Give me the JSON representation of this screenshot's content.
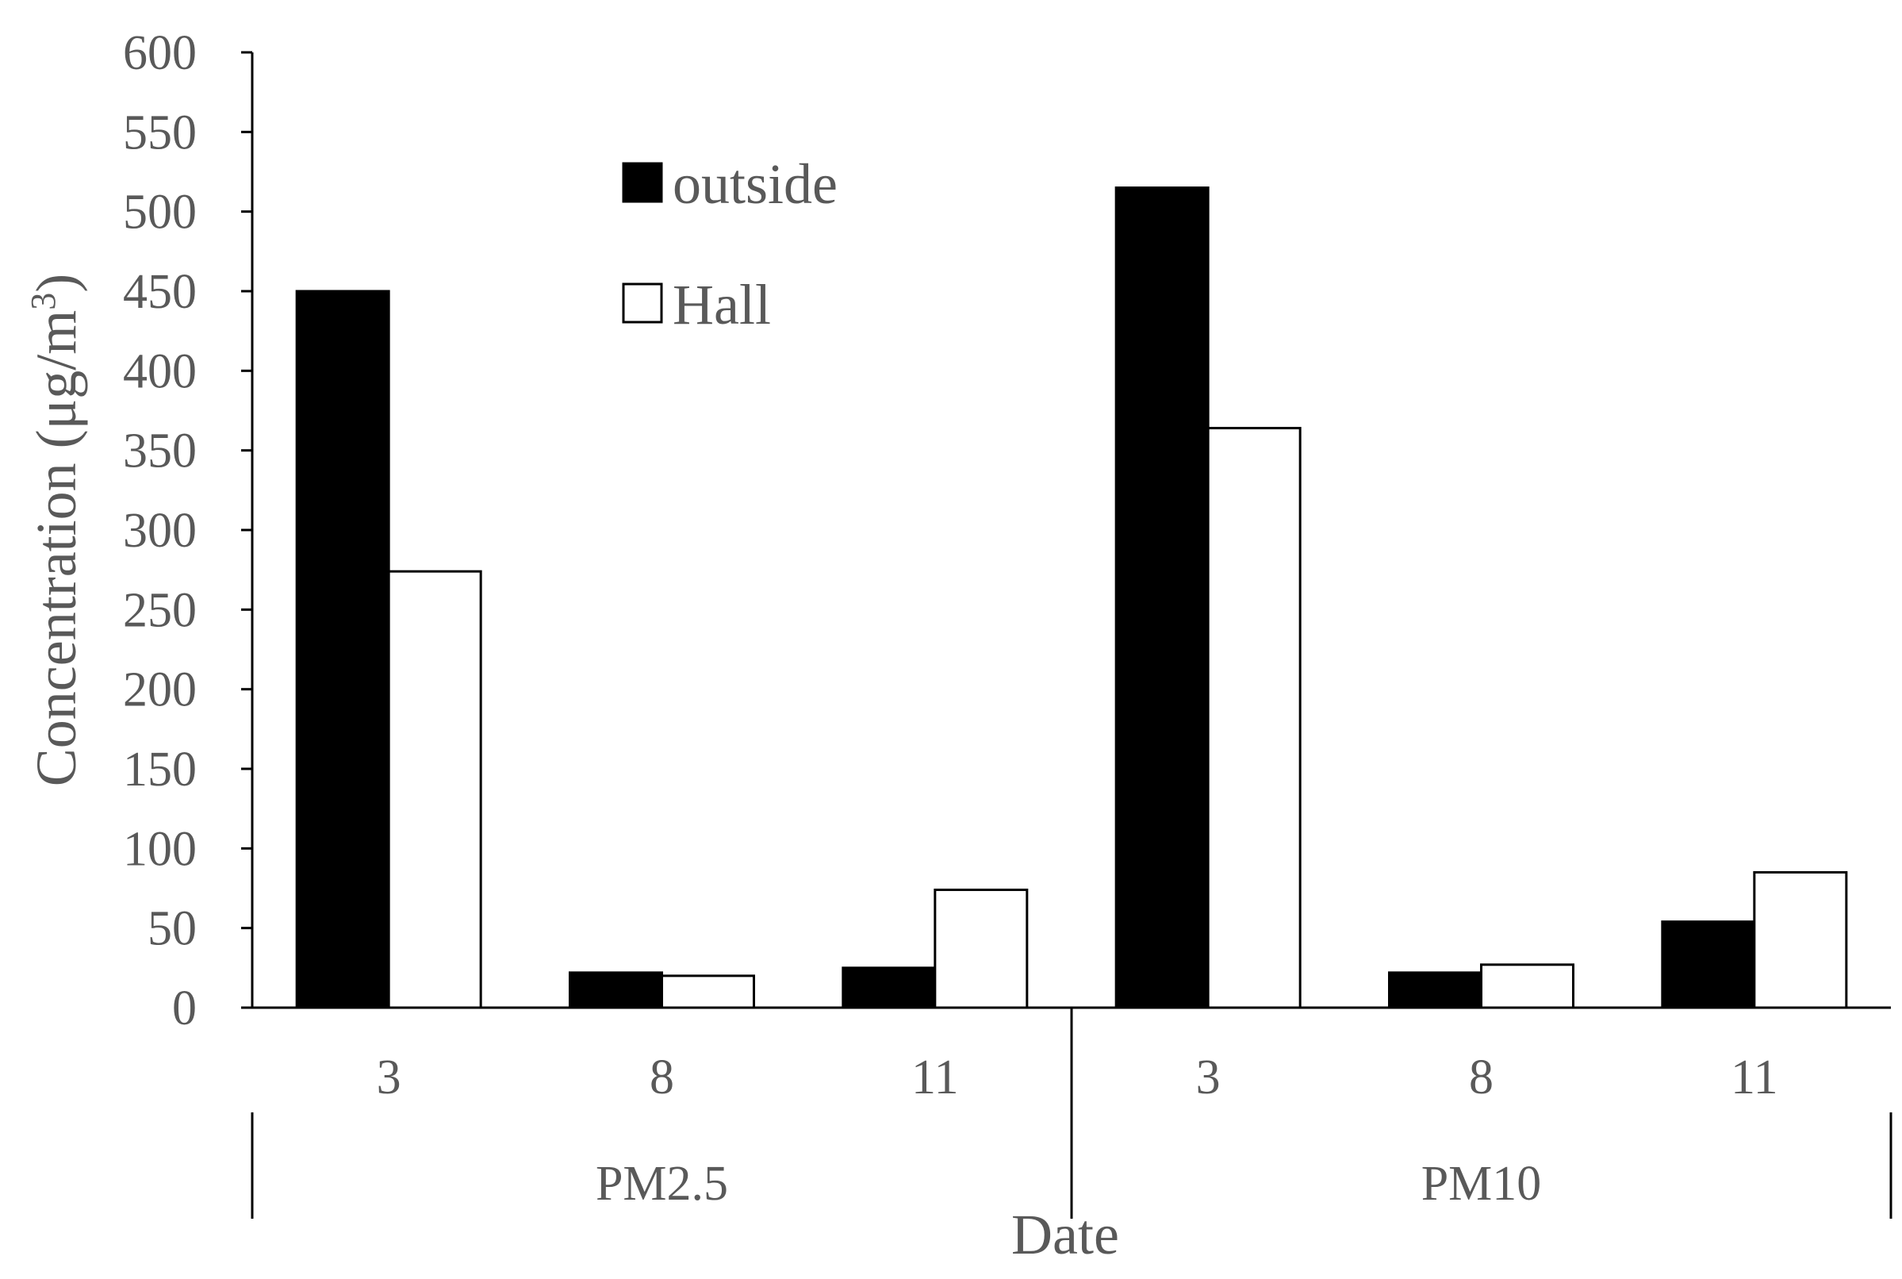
{
  "chart_data": {
    "type": "bar",
    "xlabel": "Date",
    "ylabel": "Concentration (μg/m",
    "ylabel_superscript": "3",
    "ylabel_close": ")",
    "ylim": [
      0,
      600
    ],
    "y_ticks": [
      0,
      50,
      100,
      150,
      200,
      250,
      300,
      350,
      400,
      450,
      500,
      550,
      600
    ],
    "grid": false,
    "legend_position": "top-center",
    "groups": [
      {
        "label": "PM2.5",
        "categories": [
          "3",
          "8",
          "11"
        ]
      },
      {
        "label": "PM10",
        "categories": [
          "3",
          "8",
          "11"
        ]
      }
    ],
    "categories": [
      "3",
      "8",
      "11",
      "3",
      "8",
      "11"
    ],
    "series": [
      {
        "name": "outside",
        "fill": "#000000",
        "stroke": "#000000",
        "values": [
          450,
          22,
          25,
          515,
          22,
          54
        ]
      },
      {
        "name": "Hall",
        "fill": "#ffffff",
        "stroke": "#000000",
        "values": [
          274,
          20,
          74,
          364,
          27,
          85
        ]
      }
    ]
  }
}
